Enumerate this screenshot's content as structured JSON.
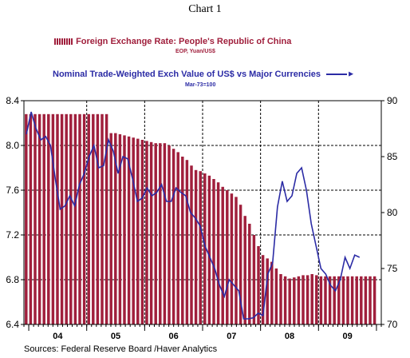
{
  "title": "Chart 1",
  "source": "Sources:  Federal Reserve Board /Haver Analytics",
  "colors": {
    "bar": "#a01f3c",
    "line": "#2b2ba5",
    "legend1_text": "#a01f3c",
    "legend2_text": "#2b2ba5"
  },
  "chart_data": {
    "type": "bar+line",
    "x_tick_labels": [
      "04",
      "05",
      "06",
      "07",
      "08",
      "09"
    ],
    "y_left": {
      "ticks": [
        "8.4",
        "8.0",
        "7.6",
        "7.2",
        "6.8",
        "6.4"
      ],
      "range": [
        6.4,
        8.4
      ]
    },
    "y_right": {
      "ticks": [
        "90",
        "85",
        "80",
        "75",
        "70"
      ],
      "range": [
        70,
        90
      ]
    },
    "grid": "dashed",
    "series": [
      {
        "name": "Foreign Exchange Rate: People's Republic of China",
        "unit_label": "EOP, Yuan/US$",
        "type": "bar",
        "axis": "left",
        "start": "2003-12",
        "values": [
          8.28,
          8.28,
          8.28,
          8.28,
          8.28,
          8.28,
          8.28,
          8.28,
          8.28,
          8.28,
          8.28,
          8.28,
          8.28,
          8.28,
          8.28,
          8.28,
          8.28,
          8.28,
          8.28,
          8.11,
          8.11,
          8.1,
          8.09,
          8.08,
          8.07,
          8.06,
          8.05,
          8.04,
          8.03,
          8.02,
          8.02,
          8.02,
          8.0,
          7.97,
          7.94,
          7.9,
          7.87,
          7.82,
          7.78,
          7.77,
          7.75,
          7.73,
          7.7,
          7.67,
          7.63,
          7.6,
          7.57,
          7.54,
          7.47,
          7.37,
          7.3,
          7.2,
          7.1,
          7.02,
          6.99,
          6.96,
          6.9,
          6.85,
          6.83,
          6.81,
          6.82,
          6.83,
          6.84,
          6.84,
          6.85,
          6.84,
          6.83,
          6.83,
          6.83,
          6.83,
          6.83,
          6.83,
          6.83,
          6.83,
          6.83,
          6.83,
          6.83,
          6.83,
          6.83
        ]
      },
      {
        "name": "Nominal Trade-Weighted Exch Value of US$ vs Major Currencies",
        "unit_label": "Mar-73=100",
        "type": "line",
        "axis": "right",
        "start": "2003-12",
        "values": [
          87.0,
          89.0,
          87.5,
          86.5,
          86.8,
          86.0,
          83.0,
          80.3,
          80.6,
          81.5,
          80.6,
          82.5,
          83.5,
          85.0,
          86.0,
          84.0,
          84.2,
          86.5,
          85.5,
          83.5,
          85.0,
          84.8,
          83.0,
          81.0,
          81.3,
          82.2,
          81.5,
          81.8,
          82.5,
          81.0,
          81.0,
          82.2,
          81.8,
          81.5,
          80.0,
          79.5,
          78.8,
          77.0,
          76.0,
          75.0,
          73.5,
          72.5,
          74.0,
          73.5,
          73.0,
          70.5,
          70.5,
          70.6,
          71.0,
          70.8,
          74.5,
          75.5,
          80.5,
          82.8,
          81.0,
          81.5,
          83.5,
          84.0,
          82.0,
          79.0,
          77.0,
          75.0,
          74.5,
          73.5,
          73.0,
          74.0,
          76.0,
          75.0,
          76.2,
          76.0
        ]
      }
    ]
  }
}
